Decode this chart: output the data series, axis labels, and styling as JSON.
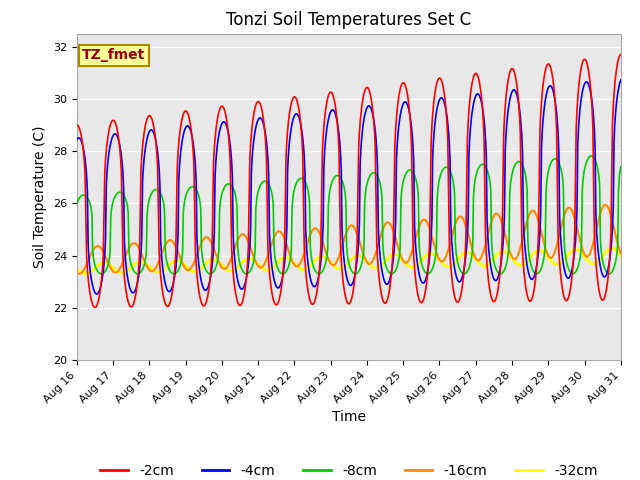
{
  "title": "Tonzi Soil Temperatures Set C",
  "xlabel": "Time",
  "ylabel": "Soil Temperature (C)",
  "annotation": "TZ_fmet",
  "ylim": [
    20,
    32.5
  ],
  "yticks": [
    20,
    22,
    24,
    26,
    28,
    30,
    32
  ],
  "x_tick_labels": [
    "Aug 16",
    "Aug 17",
    "Aug 18",
    "Aug 19",
    "Aug 20",
    "Aug 21",
    "Aug 22",
    "Aug 23",
    "Aug 24",
    "Aug 25",
    "Aug 26",
    "Aug 27",
    "Aug 28",
    "Aug 29",
    "Aug 30",
    "Aug 31"
  ],
  "legend_labels": [
    "-2cm",
    "-4cm",
    "-8cm",
    "-16cm",
    "-32cm"
  ],
  "line_colors": [
    "#ff0000",
    "#0000ff",
    "#00cc00",
    "#ff8800",
    "#ffff00"
  ],
  "background_color": "#e8e8e8",
  "title_fontsize": 12,
  "axis_fontsize": 10,
  "tick_fontsize": 8,
  "legend_fontsize": 10,
  "annotation_fontsize": 10,
  "annotation_bg": "#ffff99",
  "annotation_border": "#aa8800",
  "lw_2cm": 1.2,
  "lw_4cm": 1.2,
  "lw_8cm": 1.2,
  "lw_16cm": 1.5,
  "lw_32cm": 2.0
}
